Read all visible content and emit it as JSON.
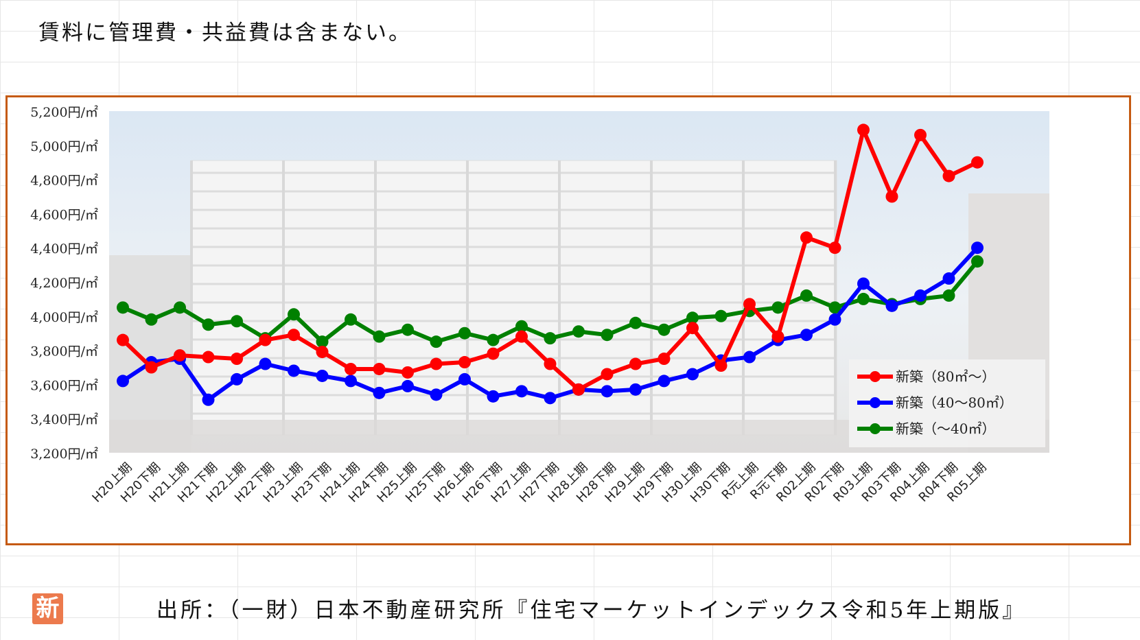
{
  "note": "賃料に管理費・共益費は含まない。",
  "source": "出所：（一財）日本不動産研究所『住宅マーケットインデックス令和5年上期版』",
  "logo_char": "新",
  "colors": {
    "frame": "#c55a11",
    "red": "#ff0000",
    "blue": "#0000ff",
    "green": "#008000"
  },
  "chart_data": {
    "type": "line",
    "title": "",
    "xlabel": "",
    "ylabel": "",
    "ylim": [
      3200,
      5200
    ],
    "yticks": [
      3200,
      3400,
      3600,
      3800,
      4000,
      4200,
      4400,
      4600,
      4800,
      5000,
      5200
    ],
    "ytick_labels": [
      "3,200円/㎡",
      "3,400円/㎡",
      "3,600円/㎡",
      "3,800円/㎡",
      "4,000円/㎡",
      "4,200円/㎡",
      "4,400円/㎡",
      "4,600円/㎡",
      "4,800円/㎡",
      "5,000円/㎡",
      "5,200円/㎡"
    ],
    "grid": false,
    "legend_position": "bottom-right",
    "categories": [
      "H20上期",
      "H20下期",
      "H21上期",
      "H21下期",
      "H22上期",
      "H22下期",
      "H23上期",
      "H23下期",
      "H24上期",
      "H24下期",
      "H25上期",
      "H25下期",
      "H26上期",
      "H26下期",
      "H27上期",
      "H27下期",
      "H28上期",
      "H28下期",
      "H29上期",
      "H29下期",
      "H30上期",
      "H30下期",
      "R元上期",
      "R元下期",
      "R02上期",
      "R02下期",
      "R03上期",
      "R03下期",
      "R04上期",
      "R04下期",
      "R05上期"
    ],
    "series": [
      {
        "name": "新築（80㎡～）",
        "color": "#ff0000",
        "values": [
          3860,
          3700,
          3770,
          3760,
          3750,
          3860,
          3890,
          3790,
          3690,
          3690,
          3670,
          3720,
          3730,
          3780,
          3880,
          3720,
          3570,
          3660,
          3720,
          3750,
          3930,
          3710,
          4070,
          3880,
          4460,
          4400,
          5090,
          4700,
          5060,
          4820,
          4900
        ]
      },
      {
        "name": "新築（40～80㎡）",
        "color": "#0000ff",
        "values": [
          3620,
          3730,
          3750,
          3510,
          3630,
          3720,
          3680,
          3650,
          3620,
          3550,
          3590,
          3540,
          3630,
          3530,
          3560,
          3520,
          3570,
          3560,
          3570,
          3620,
          3660,
          3740,
          3760,
          3860,
          3890,
          3980,
          4190,
          4060,
          4120,
          4220,
          4400
        ]
      },
      {
        "name": "新築（～40㎡）",
        "color": "#008000",
        "values": [
          4050,
          3980,
          4050,
          3950,
          3970,
          3870,
          4010,
          3850,
          3980,
          3880,
          3920,
          3850,
          3900,
          3860,
          3940,
          3870,
          3910,
          3890,
          3960,
          3920,
          3990,
          4000,
          4030,
          4050,
          4120,
          4050,
          4100,
          4070,
          4100,
          4120,
          4320
        ]
      }
    ]
  }
}
